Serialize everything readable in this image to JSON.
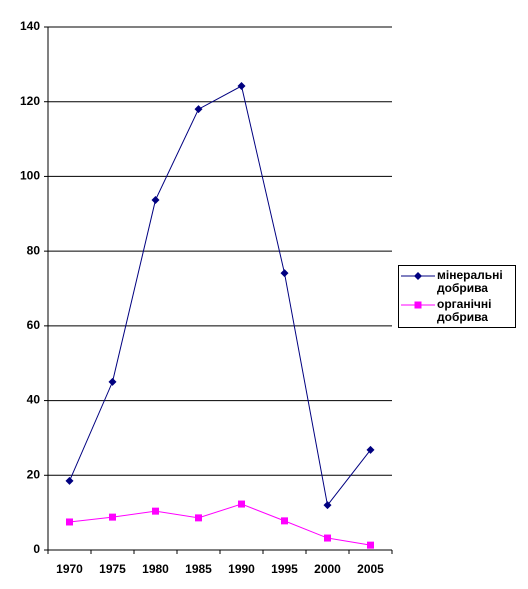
{
  "chart_data": {
    "type": "line",
    "categories": [
      "1970",
      "1975",
      "1980",
      "1985",
      "1990",
      "1995",
      "2000",
      "2005"
    ],
    "series": [
      {
        "name": "мінеральні добрива",
        "color": "#000080",
        "marker": "diamond",
        "values": [
          18.5,
          45,
          93.7,
          118,
          124.2,
          74.1,
          12,
          26.8
        ]
      },
      {
        "name": "органічні добрива",
        "color": "#ff00ff",
        "marker": "square",
        "values": [
          7.5,
          8.8,
          10.4,
          8.6,
          12.3,
          7.8,
          3.2,
          1.3
        ]
      }
    ],
    "ylim": [
      0,
      140
    ],
    "yticks": [
      0,
      20,
      40,
      60,
      80,
      100,
      120,
      140
    ],
    "grid": true,
    "legend": "right"
  }
}
